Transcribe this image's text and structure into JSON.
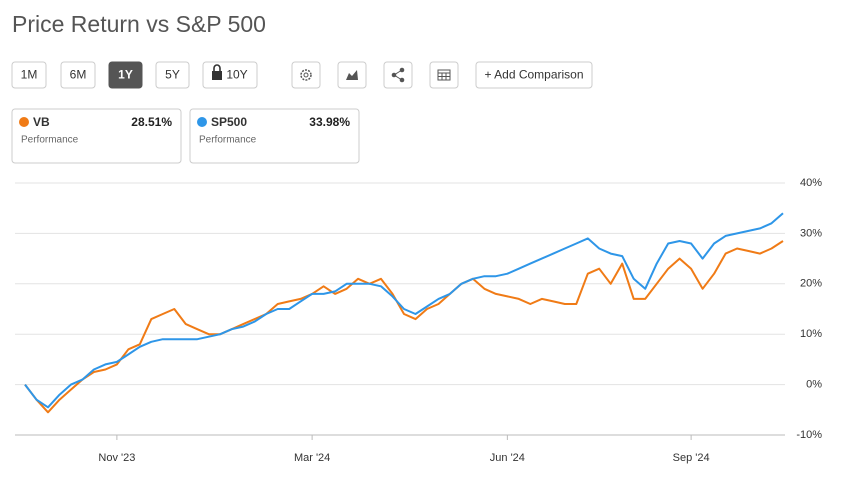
{
  "title": "Price Return vs S&P 500",
  "toolbar": {
    "ranges": [
      {
        "label": "1M"
      },
      {
        "label": "6M"
      },
      {
        "label": "1Y",
        "selected": true
      },
      {
        "label": "5Y"
      },
      {
        "label": "10Y",
        "locked": true
      }
    ],
    "add_button": "+ Add Comparison"
  },
  "chart_data": {
    "type": "line",
    "categories": [
      null,
      null,
      null,
      null,
      null,
      null,
      null,
      null,
      "Nov '23",
      null,
      null,
      null,
      null,
      null,
      null,
      null,
      null,
      null,
      null,
      null,
      null,
      null,
      null,
      null,
      null,
      "Mar '24",
      null,
      null,
      null,
      null,
      null,
      null,
      null,
      null,
      null,
      null,
      null,
      null,
      null,
      null,
      null,
      null,
      "Jun '24",
      null,
      null,
      null,
      null,
      null,
      null,
      null,
      null,
      null,
      null,
      null,
      null,
      null,
      null,
      null,
      "Sep '24",
      null,
      null,
      null,
      null,
      null,
      null,
      null,
      null
    ],
    "series": [
      {
        "name": "VB",
        "color": "#f07b16",
        "summary": "28.51%",
        "summary_caption": "Performance",
        "values": [
          0,
          -3,
          -5.5,
          -3,
          -1,
          1,
          2.5,
          3,
          4,
          7,
          8,
          13,
          14,
          15,
          12,
          11,
          10,
          10,
          11,
          12,
          13,
          14,
          16,
          16.5,
          17,
          18,
          19.5,
          18,
          19,
          21,
          20,
          21,
          18,
          14,
          13,
          15,
          16,
          18,
          20,
          21,
          19,
          18,
          17.5,
          17,
          16,
          17,
          16.5,
          16,
          16,
          22,
          23,
          20,
          24,
          17,
          17,
          20,
          23,
          25,
          23,
          19,
          22,
          26,
          27,
          26.5,
          26,
          27,
          28.5
        ]
      },
      {
        "name": "SP500",
        "color": "#2e96e8",
        "summary": "33.98%",
        "summary_caption": "Performance",
        "values": [
          0,
          -3,
          -4.5,
          -2,
          0,
          1,
          3,
          4,
          4.5,
          6,
          7.5,
          8.5,
          9,
          9,
          9,
          9,
          9.5,
          10,
          11,
          11.5,
          12.5,
          14,
          15,
          15,
          16.5,
          18,
          18,
          18.5,
          20,
          20,
          20,
          19.5,
          17.5,
          15,
          14,
          15.5,
          17,
          18,
          20,
          21,
          21.5,
          21.5,
          22,
          23,
          24,
          25,
          26,
          27,
          28,
          29,
          27,
          26,
          25.5,
          21,
          19,
          24,
          28,
          28.5,
          28,
          25,
          28,
          29.5,
          30,
          30.5,
          31,
          32,
          34
        ]
      }
    ],
    "ylim": [
      -10,
      40
    ],
    "yticks": [
      {
        "value": -10,
        "label": "-10%"
      },
      {
        "value": 0,
        "label": "0%"
      },
      {
        "value": 10,
        "label": "10%"
      },
      {
        "value": 20,
        "label": "20%"
      },
      {
        "value": 30,
        "label": "30%"
      },
      {
        "value": 40,
        "label": "40%"
      }
    ],
    "grid": true
  }
}
